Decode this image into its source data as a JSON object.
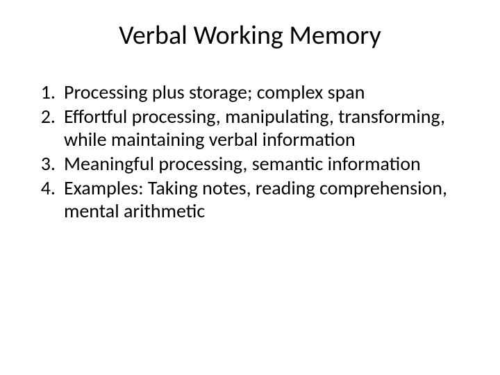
{
  "slide": {
    "title": "Verbal Working Memory",
    "title_fontsize": 38,
    "title_color": "#000000",
    "background_color": "#ffffff",
    "body_fontsize": 28,
    "body_color": "#000000",
    "items": [
      "Processing plus storage; complex span",
      "Effortful processing, manipulating, transforming, while maintaining verbal information",
      "Meaningful processing, semantic information",
      "Examples: Taking notes, reading comprehension, mental arithmetic"
    ]
  }
}
